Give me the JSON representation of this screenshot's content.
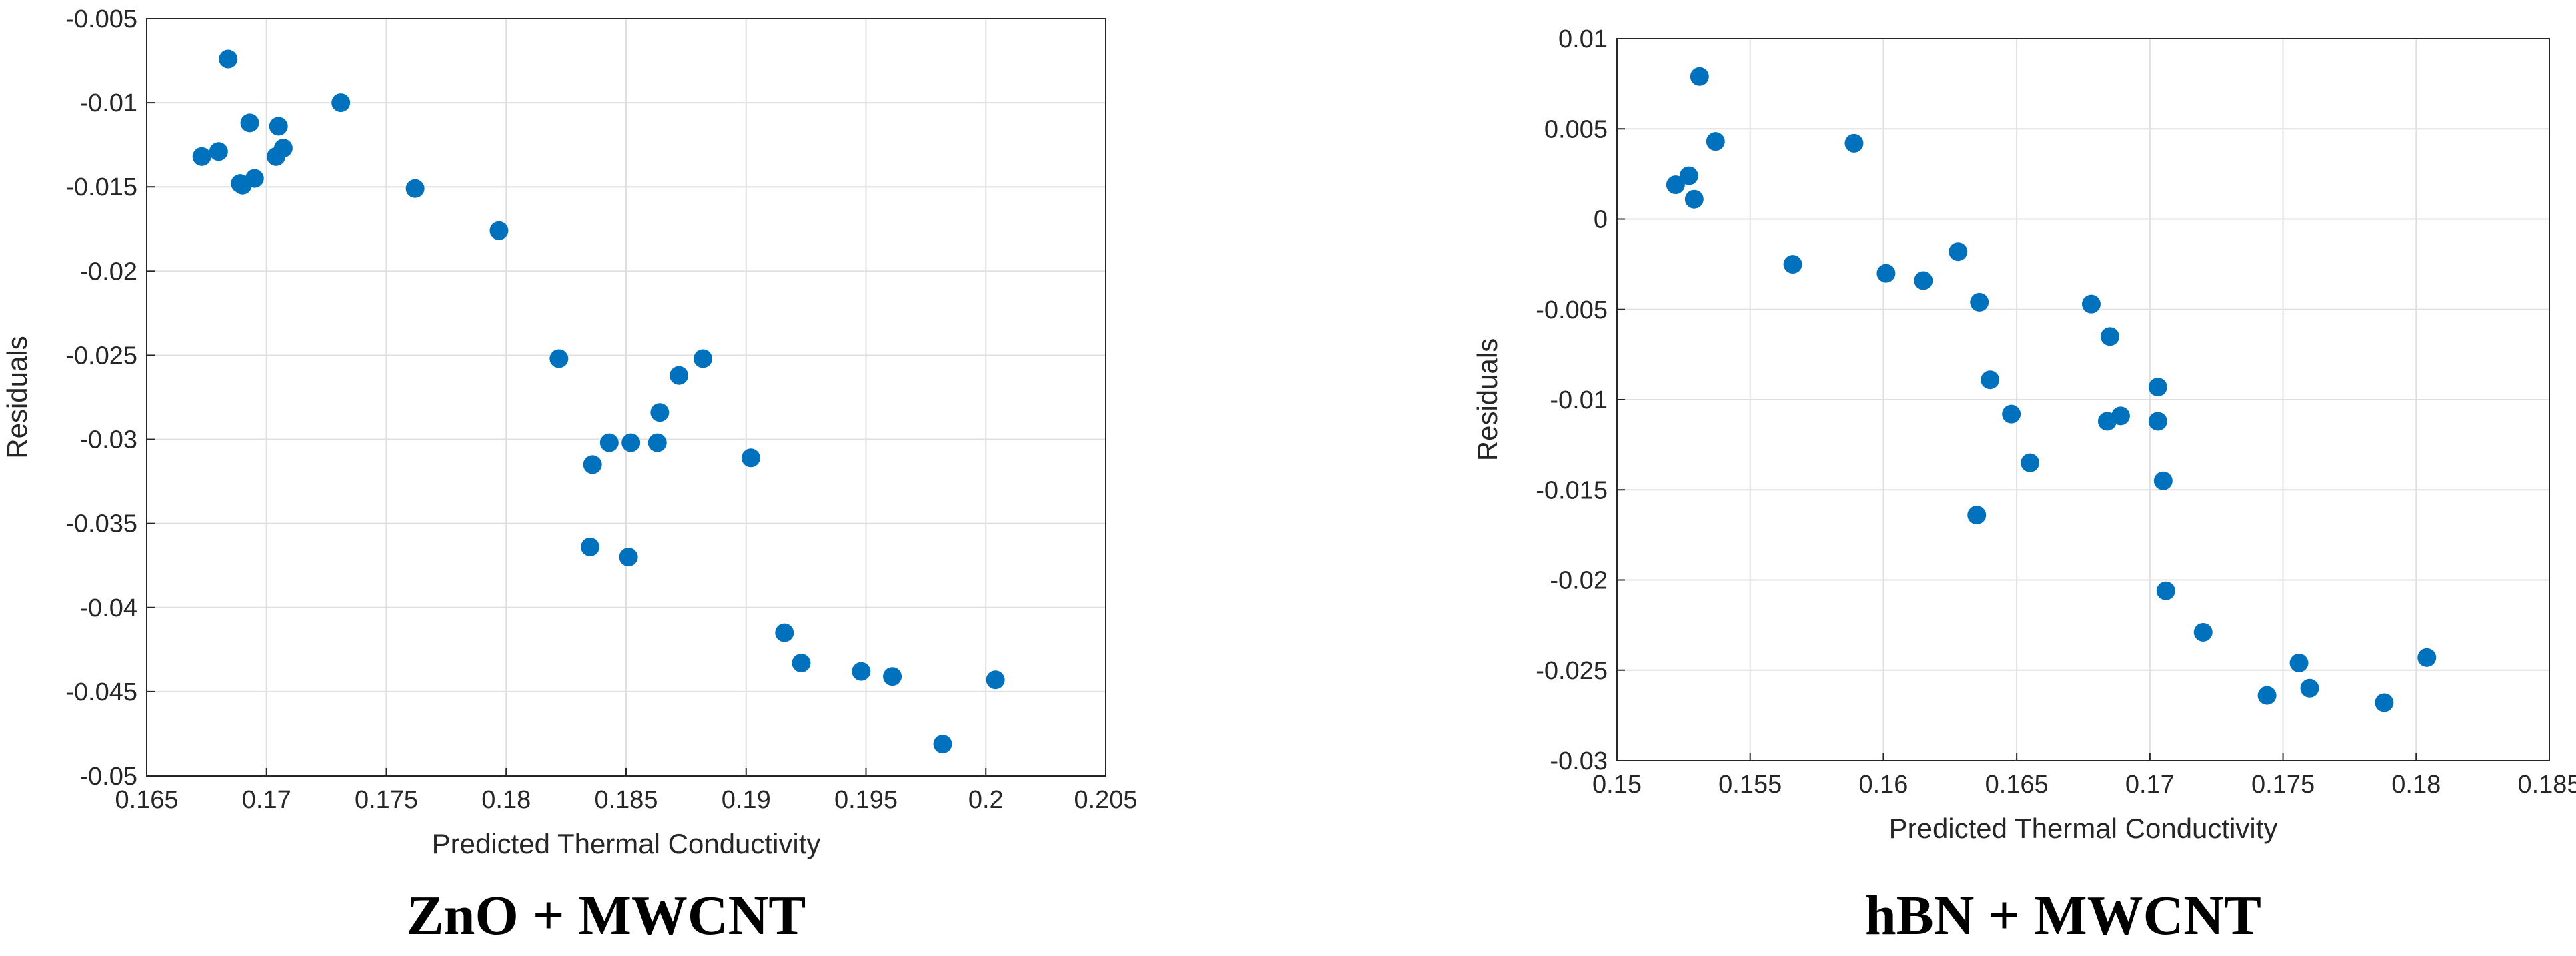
{
  "colors": {
    "marker": "#0072BD",
    "grid": "#dfdfdf",
    "axis": "#262626"
  },
  "chart_data": [
    {
      "type": "scatter",
      "caption": "ZnO + MWCNT",
      "xlabel": "Predicted Thermal Conductivity",
      "ylabel": "Residuals",
      "xlim": [
        0.165,
        0.205
      ],
      "ylim": [
        -0.05,
        -0.005
      ],
      "grid": true,
      "x_ticks": [
        0.165,
        0.17,
        0.175,
        0.18,
        0.185,
        0.19,
        0.195,
        0.2,
        0.205
      ],
      "x_tick_labels": [
        "0.165",
        "0.17",
        "0.175",
        "0.18",
        "0.185",
        "0.19",
        "0.195",
        "0.2",
        "0.205"
      ],
      "y_ticks": [
        -0.05,
        -0.045,
        -0.04,
        -0.035,
        -0.03,
        -0.025,
        -0.02,
        -0.015,
        -0.01,
        -0.005
      ],
      "y_tick_labels": [
        "-0.05",
        "-0.045",
        "-0.04",
        "-0.035",
        "-0.03",
        "-0.025",
        "-0.02",
        "-0.015",
        "-0.01",
        "-0.005"
      ],
      "points": [
        [
          0.1684,
          -0.0074
        ],
        [
          0.1731,
          -0.01
        ],
        [
          0.1693,
          -0.0112
        ],
        [
          0.1705,
          -0.0114
        ],
        [
          0.1707,
          -0.0127
        ],
        [
          0.168,
          -0.0129
        ],
        [
          0.1673,
          -0.0132
        ],
        [
          0.1704,
          -0.0132
        ],
        [
          0.1695,
          -0.0145
        ],
        [
          0.1689,
          -0.0148
        ],
        [
          0.169,
          -0.0149
        ],
        [
          0.1762,
          -0.0151
        ],
        [
          0.1797,
          -0.0176
        ],
        [
          0.1822,
          -0.0252
        ],
        [
          0.1882,
          -0.0252
        ],
        [
          0.1872,
          -0.0262
        ],
        [
          0.1864,
          -0.0284
        ],
        [
          0.1843,
          -0.0302
        ],
        [
          0.1852,
          -0.0302
        ],
        [
          0.1863,
          -0.0302
        ],
        [
          0.1902,
          -0.0311
        ],
        [
          0.1836,
          -0.0315
        ],
        [
          0.1835,
          -0.0364
        ],
        [
          0.1851,
          -0.037
        ],
        [
          0.1916,
          -0.0415
        ],
        [
          0.1923,
          -0.0433
        ],
        [
          0.1948,
          -0.0438
        ],
        [
          0.1961,
          -0.0441
        ],
        [
          0.2004,
          -0.0443
        ],
        [
          0.1982,
          -0.0481
        ]
      ]
    },
    {
      "type": "scatter",
      "caption": "hBN + MWCNT",
      "xlabel": "Predicted Thermal Conductivity",
      "ylabel": "Residuals",
      "xlim": [
        0.15,
        0.185
      ],
      "ylim": [
        -0.03,
        0.01
      ],
      "grid": true,
      "x_ticks": [
        0.15,
        0.155,
        0.16,
        0.165,
        0.17,
        0.175,
        0.18,
        0.185
      ],
      "x_tick_labels": [
        "0.15",
        "0.155",
        "0.16",
        "0.165",
        "0.17",
        "0.175",
        "0.18",
        "0.185"
      ],
      "y_ticks": [
        -0.03,
        -0.025,
        -0.02,
        -0.015,
        -0.01,
        -0.005,
        0,
        0.005,
        0.01
      ],
      "y_tick_labels": [
        "-0.03",
        "-0.025",
        "-0.02",
        "-0.015",
        "-0.01",
        "-0.005",
        "0",
        "0.005",
        "0.01"
      ],
      "points": [
        [
          0.1531,
          0.0079
        ],
        [
          0.1537,
          0.0043
        ],
        [
          0.1589,
          0.0042
        ],
        [
          0.1527,
          0.0024
        ],
        [
          0.1522,
          0.0019
        ],
        [
          0.1529,
          0.0011
        ],
        [
          0.1628,
          -0.0018
        ],
        [
          0.1566,
          -0.0025
        ],
        [
          0.1601,
          -0.003
        ],
        [
          0.1615,
          -0.0034
        ],
        [
          0.1636,
          -0.0046
        ],
        [
          0.1678,
          -0.0047
        ],
        [
          0.1685,
          -0.0065
        ],
        [
          0.164,
          -0.0089
        ],
        [
          0.1703,
          -0.0093
        ],
        [
          0.1648,
          -0.0108
        ],
        [
          0.1689,
          -0.0109
        ],
        [
          0.1684,
          -0.0112
        ],
        [
          0.1703,
          -0.0112
        ],
        [
          0.1655,
          -0.0135
        ],
        [
          0.1705,
          -0.0145
        ],
        [
          0.1635,
          -0.0164
        ],
        [
          0.1706,
          -0.0206
        ],
        [
          0.172,
          -0.0229
        ],
        [
          0.1804,
          -0.0243
        ],
        [
          0.1756,
          -0.0246
        ],
        [
          0.176,
          -0.026
        ],
        [
          0.1744,
          -0.0264
        ],
        [
          0.1788,
          -0.0268
        ]
      ]
    }
  ]
}
